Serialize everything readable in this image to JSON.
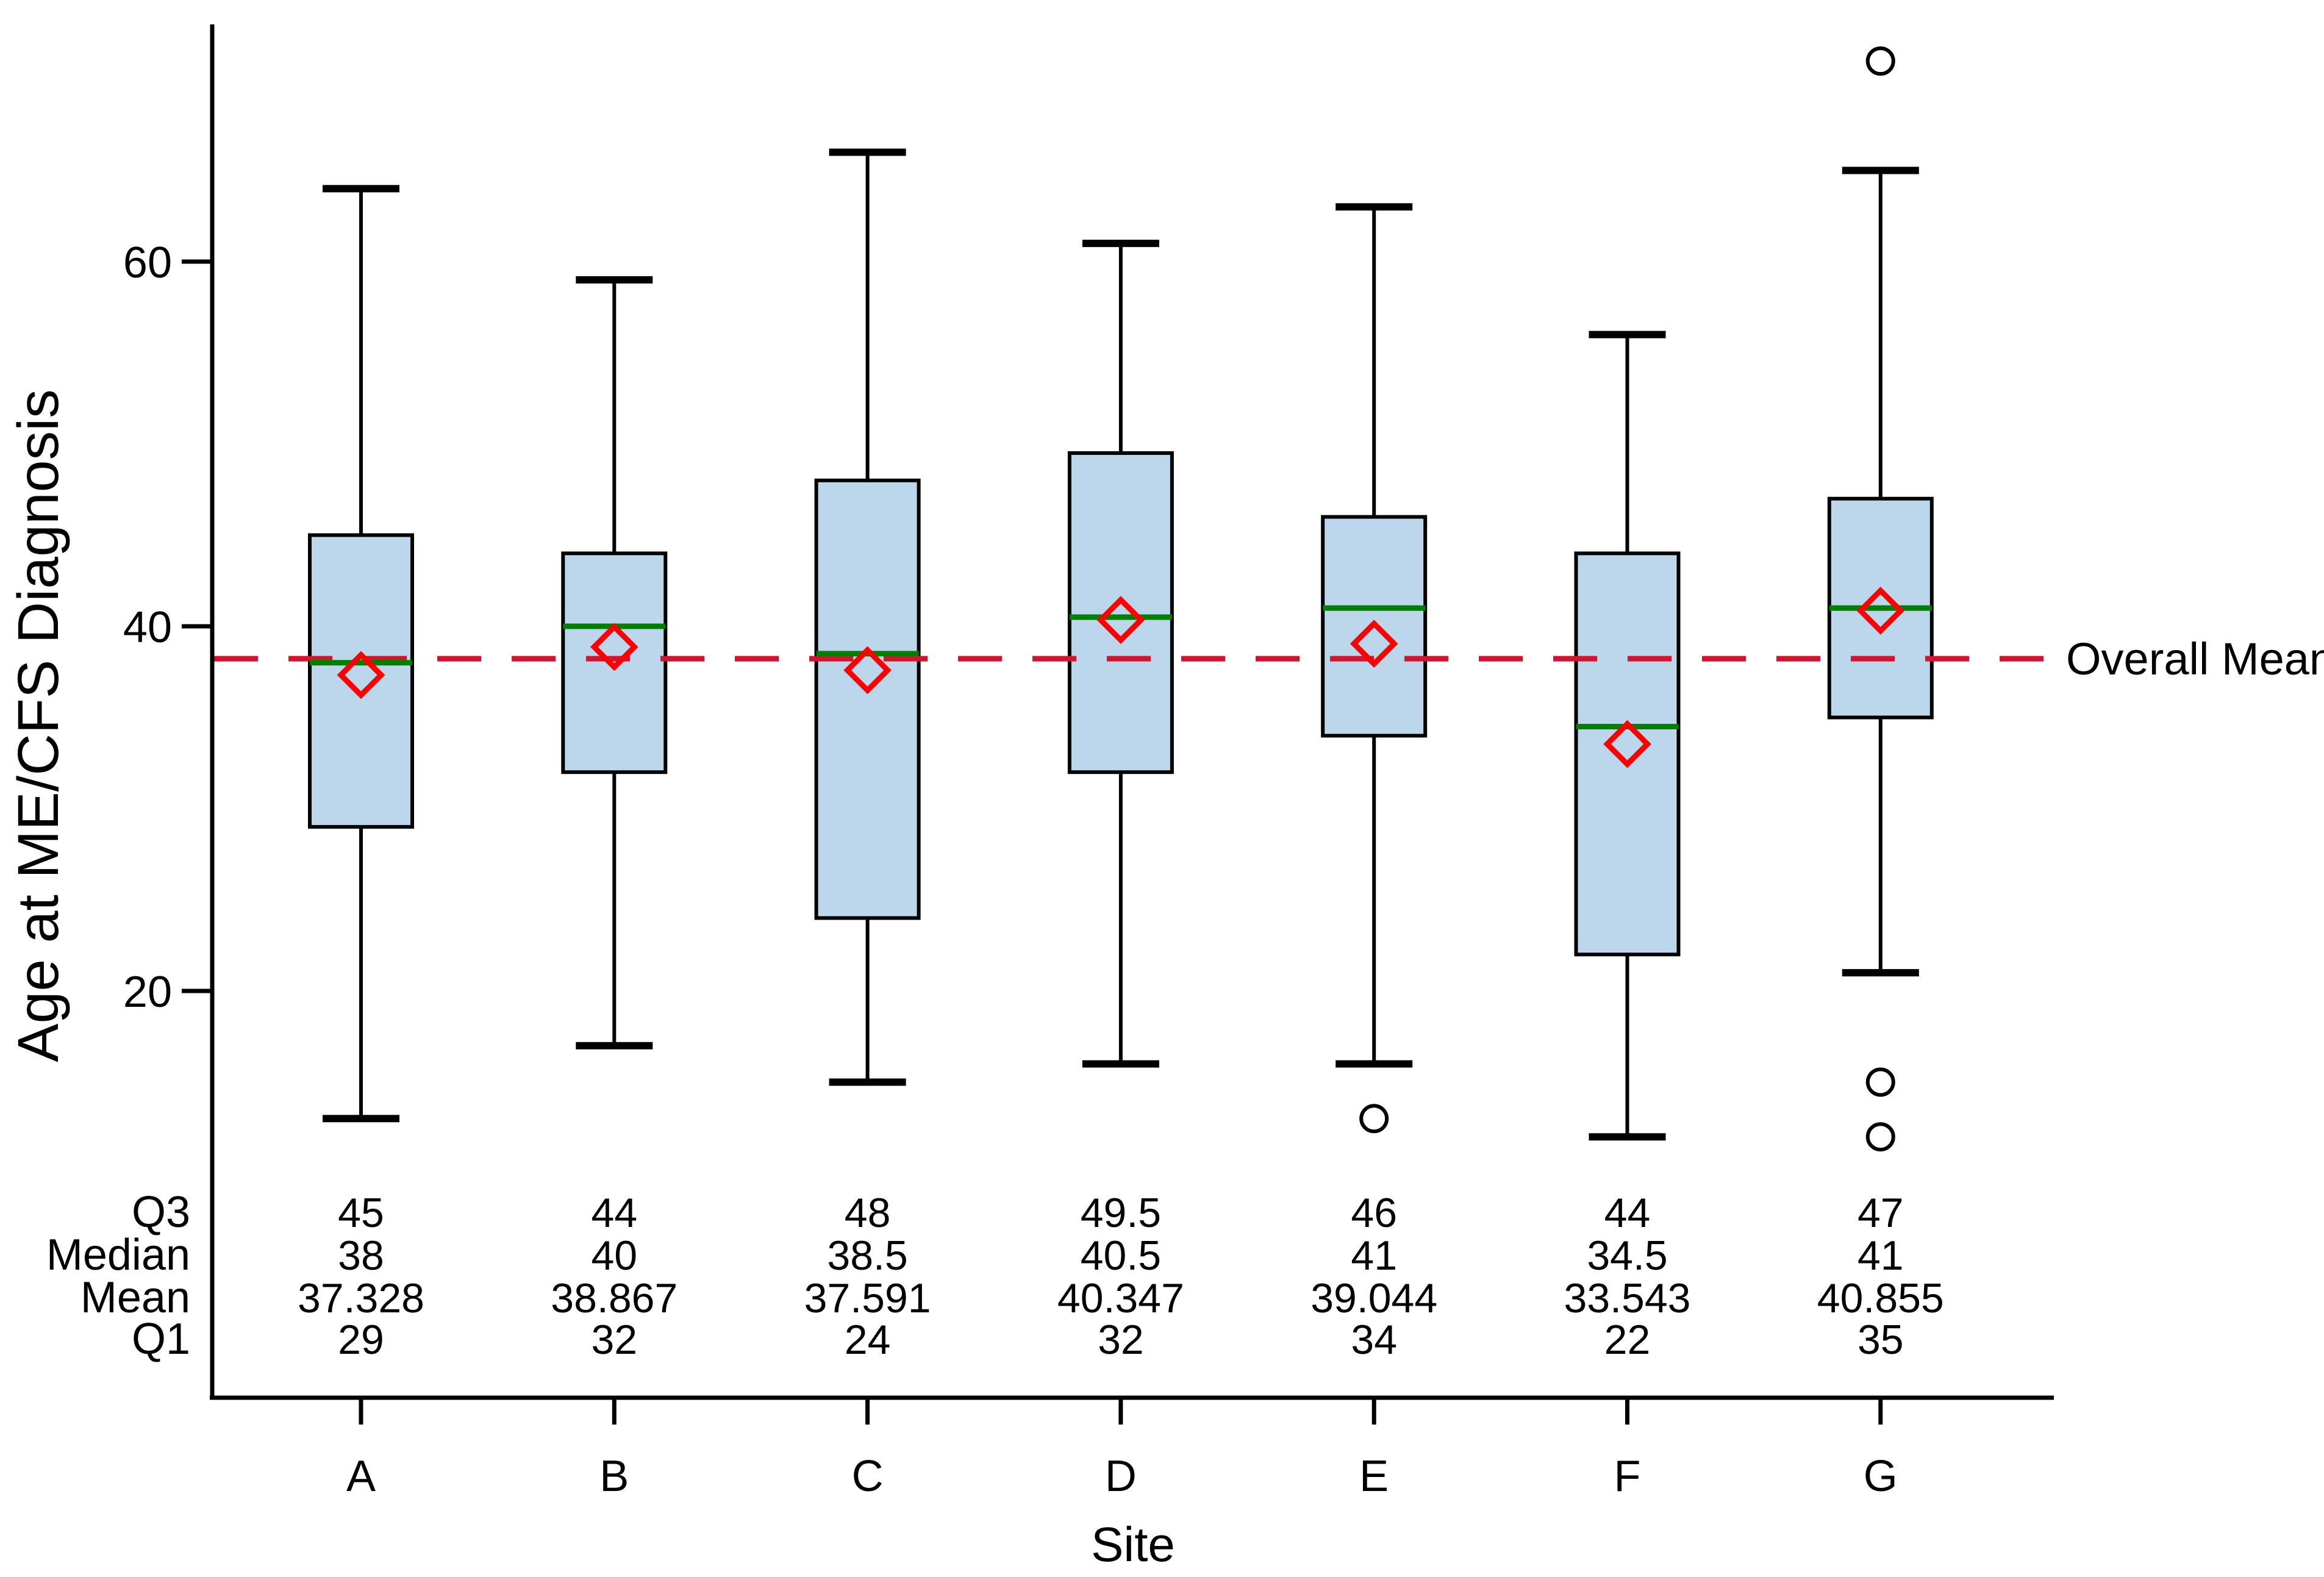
{
  "chart_data": {
    "type": "boxplot",
    "xlabel": "Site",
    "ylabel": "Age at ME/CFS Diagnosis",
    "y_ticks": [
      20,
      40,
      60
    ],
    "y_axis_range": [
      -2.3,
      73
    ],
    "grid": false,
    "overall_mean": 38.225,
    "overall_mean_label": "Overall Mean",
    "sites": [
      {
        "label": "A",
        "q3": 45,
        "median": 38,
        "mean": 37.328,
        "q1": 29,
        "whisker_high": 64,
        "whisker_low": 13,
        "outliers": []
      },
      {
        "label": "B",
        "q3": 44,
        "median": 40,
        "mean": 38.867,
        "q1": 32,
        "whisker_high": 59,
        "whisker_low": 17,
        "outliers": []
      },
      {
        "label": "C",
        "q3": 48,
        "median": 38.5,
        "mean": 37.591,
        "q1": 24,
        "whisker_high": 66,
        "whisker_low": 15,
        "outliers": []
      },
      {
        "label": "D",
        "q3": 49.5,
        "median": 40.5,
        "mean": 40.347,
        "q1": 32,
        "whisker_high": 61,
        "whisker_low": 16,
        "outliers": []
      },
      {
        "label": "E",
        "q3": 46,
        "median": 41,
        "mean": 39.044,
        "q1": 34,
        "whisker_high": 63,
        "whisker_low": 16,
        "outliers": [
          13
        ]
      },
      {
        "label": "F",
        "q3": 44,
        "median": 34.5,
        "mean": 33.543,
        "q1": 22,
        "whisker_high": 56,
        "whisker_low": 12,
        "outliers": []
      },
      {
        "label": "G",
        "q3": 47,
        "median": 41,
        "mean": 40.855,
        "q1": 35,
        "whisker_high": 65,
        "whisker_low": 21,
        "outliers": [
          71,
          15,
          12
        ]
      }
    ],
    "stats_table": {
      "row_labels": [
        "Q3",
        "Median",
        "Mean",
        "Q1"
      ],
      "rows": [
        {
          "label": "Q3",
          "values": [
            "45",
            "44",
            "48",
            "49.5",
            "46",
            "44",
            "47"
          ]
        },
        {
          "label": "Median",
          "values": [
            "38",
            "40",
            "38.5",
            "40.5",
            "41",
            "34.5",
            "41"
          ]
        },
        {
          "label": "Mean",
          "values": [
            "37.328",
            "38.867",
            "37.591",
            "40.347",
            "39.044",
            "33.543",
            "40.855"
          ]
        },
        {
          "label": "Q1",
          "values": [
            "29",
            "32",
            "24",
            "32",
            "34",
            "22",
            "35"
          ]
        }
      ]
    },
    "colors": {
      "box_fill": "#bcd6ec",
      "box_border": "#000000",
      "median_line": "#008000",
      "mean_marker": "#ff0000",
      "overall_mean_line": "#d2152e",
      "axis": "#000000",
      "outlier": "#000000"
    },
    "legend_position": "none"
  }
}
